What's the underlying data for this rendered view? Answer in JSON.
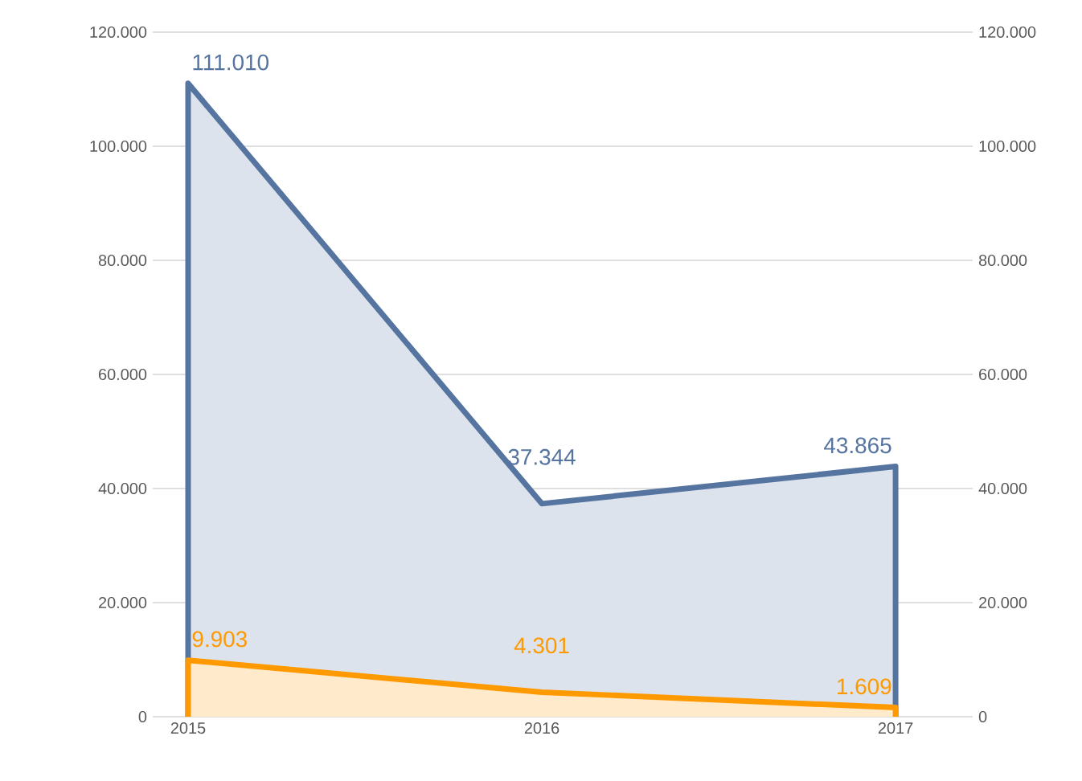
{
  "chart_data": {
    "type": "area",
    "categories": [
      "2015",
      "2016",
      "2017"
    ],
    "series": [
      {
        "color": "#5674a0",
        "values": [
          111010,
          37344,
          43865
        ],
        "value_labels": [
          "111.010",
          "37.344",
          "43.865"
        ]
      },
      {
        "color": "#ff9900",
        "values": [
          9903,
          4301,
          1609
        ],
        "value_labels": [
          "9.903",
          "4.301",
          "1.609"
        ]
      }
    ],
    "ylim": [
      0,
      120000
    ],
    "yticks": [
      {
        "value": 0,
        "label": "0"
      },
      {
        "value": 20000,
        "label": "20.000"
      },
      {
        "value": 40000,
        "label": "40.000"
      },
      {
        "value": 60000,
        "label": "60.000"
      },
      {
        "value": 80000,
        "label": "80.000"
      },
      {
        "value": 100000,
        "label": "100.000"
      },
      {
        "value": 120000,
        "label": "120.000"
      }
    ],
    "y2lim": [
      0,
      120000
    ],
    "y2ticks": [
      {
        "value": 0,
        "label": "0"
      },
      {
        "value": 20000,
        "label": "20.000"
      },
      {
        "value": 40000,
        "label": "40.000"
      },
      {
        "value": 60000,
        "label": "60.000"
      },
      {
        "value": 80000,
        "label": "80.000"
      },
      {
        "value": 100000,
        "label": "100.000"
      },
      {
        "value": 120000,
        "label": "120.000"
      }
    ],
    "grid": "y"
  }
}
